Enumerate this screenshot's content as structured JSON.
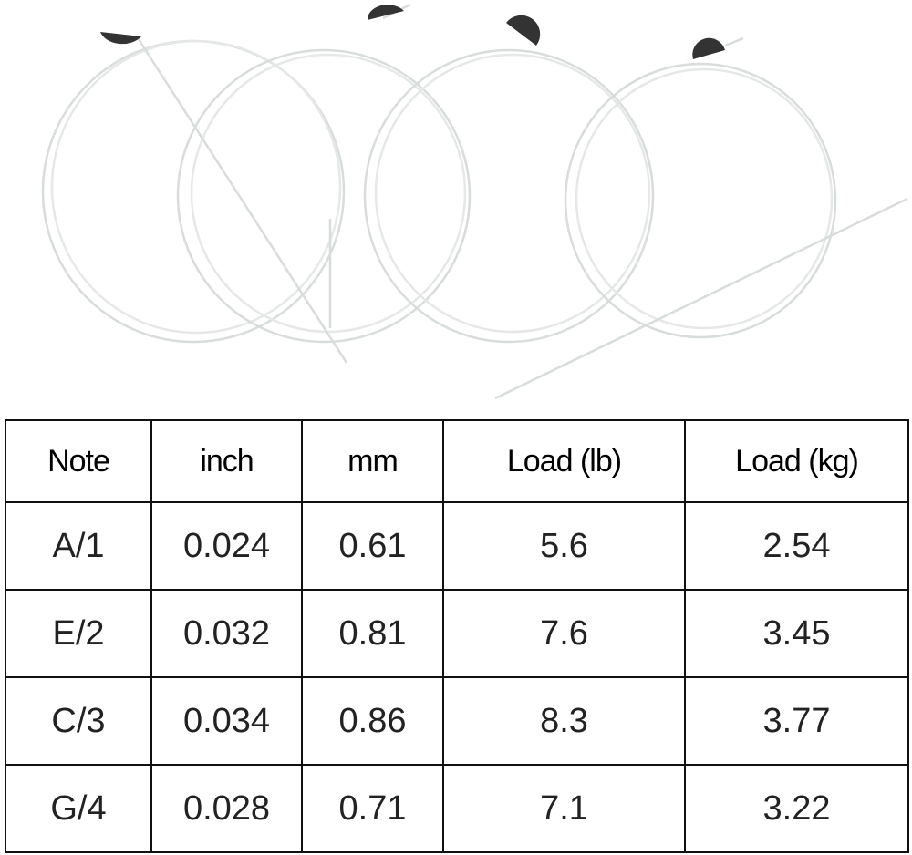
{
  "table": {
    "header": [
      "Note",
      "inch",
      "mm",
      "Load (lb)",
      "Load (kg)"
    ],
    "rows": [
      [
        "A/1",
        "0.024",
        "0.61",
        "5.6",
        "2.54"
      ],
      [
        "E/2",
        "0.032",
        "0.81",
        "7.6",
        "3.45"
      ],
      [
        "C/3",
        "0.034",
        "0.86",
        "8.3",
        "3.77"
      ],
      [
        "G/4",
        "0.028",
        "0.71",
        "7.1",
        "3.22"
      ]
    ]
  }
}
